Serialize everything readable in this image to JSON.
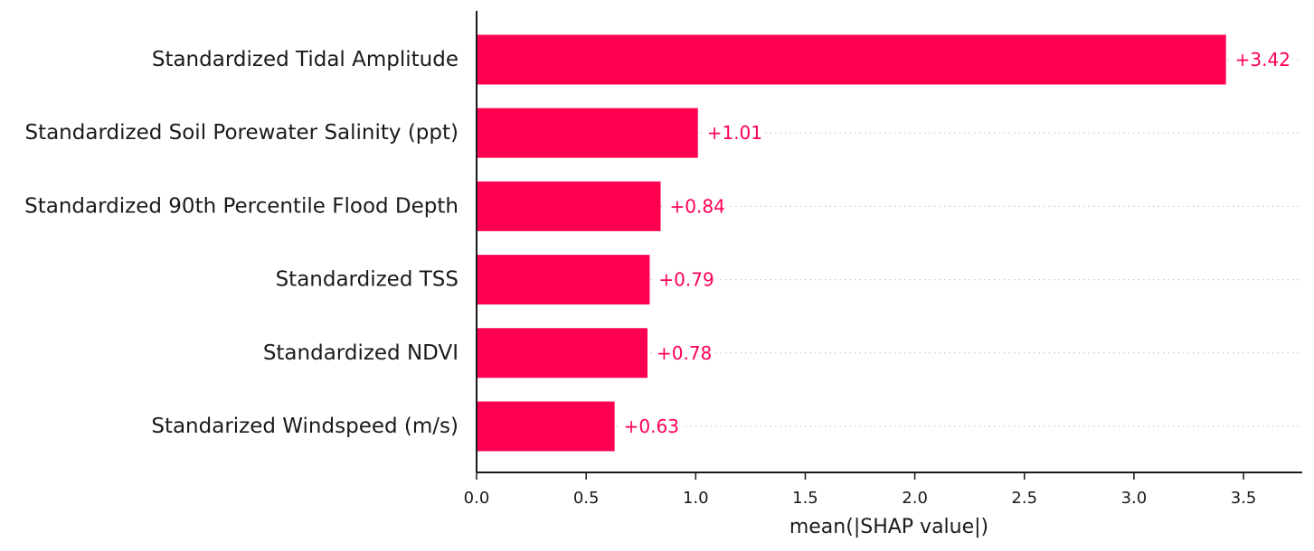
{
  "chart_data": {
    "type": "bar",
    "orientation": "horizontal",
    "categories": [
      "Standardized Tidal Amplitude",
      "Standardized Soil Porewater Salinity (ppt)",
      "Standardized 90th Percentile Flood Depth",
      "Standardized TSS",
      "Standardized NDVI",
      "Standarized Windspeed (m/s)"
    ],
    "values": [
      3.42,
      1.01,
      0.84,
      0.79,
      0.78,
      0.63
    ],
    "value_labels": [
      "+3.42",
      "+1.01",
      "+0.84",
      "+0.79",
      "+0.78",
      "+0.63"
    ],
    "title": "",
    "xlabel": "mean(|SHAP value|)",
    "ylabel": "",
    "xlim": [
      0,
      3.75
    ],
    "xticks": [
      0.0,
      0.5,
      1.0,
      1.5,
      2.0,
      2.5,
      3.0,
      3.5
    ],
    "xtick_labels": [
      "0.0",
      "0.5",
      "1.0",
      "1.5",
      "2.0",
      "2.5",
      "3.0",
      "3.5"
    ],
    "grid": "dotted row guides",
    "bar_color": "#ff0051",
    "label_color": "#ff0051",
    "text_color": "#1a1a1a"
  }
}
